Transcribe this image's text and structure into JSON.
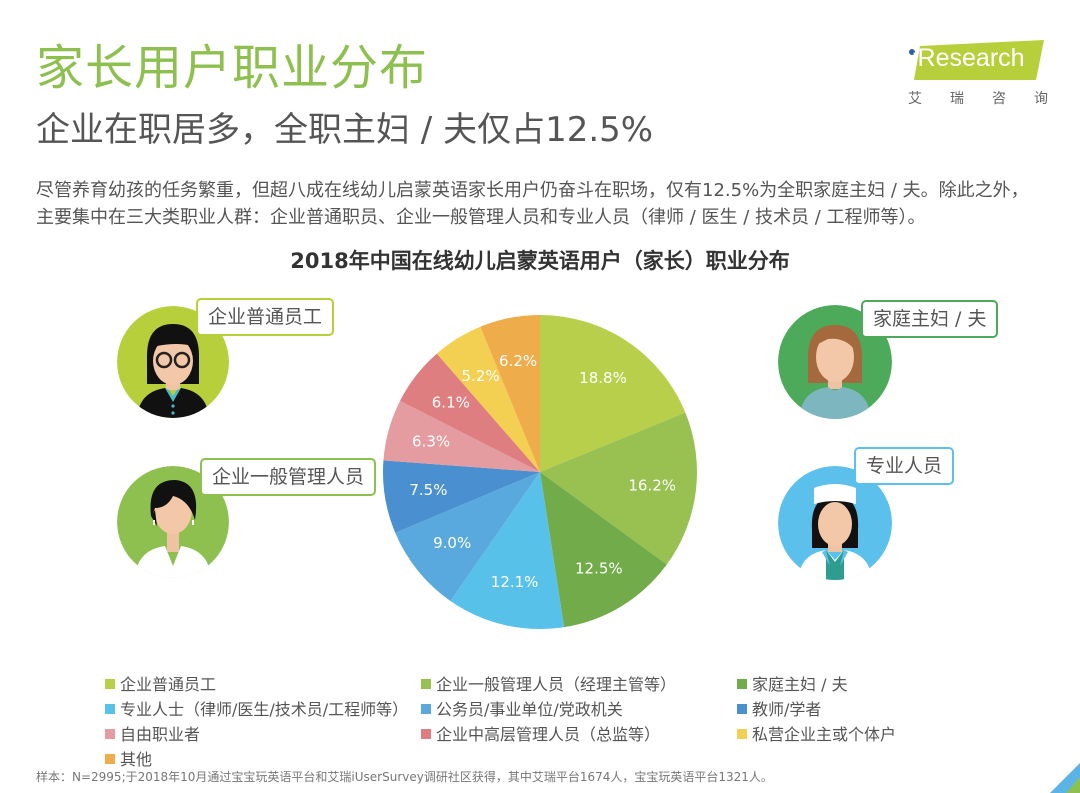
{
  "header": {
    "title": "家长用户职业分布",
    "subtitle": "企业在职居多，全职主妇 / 夫仅占12.5%",
    "logo": {
      "brand": "iResearch",
      "chinese": [
        "艾",
        "瑞",
        "咨",
        "询"
      ],
      "band_color": "#b8cf3c",
      "dot_color": "#2c5fa8"
    }
  },
  "description": "尽管养育幼孩的任务繁重，但超八成在线幼儿启蒙英语家长用户仍奋斗在职场，仅有12.5%为全职家庭主妇 / 夫。除此之外，主要集中在三大类职业人群：企业普通职员、企业一般管理人员和专业人员（律师 / 医生 / 技术员 / 工程师等）。",
  "callouts": [
    {
      "label": "企业普通员工",
      "border_color": "#b8cf3c"
    },
    {
      "label": "企业一般管理人员",
      "border_color": "#8dc04f"
    },
    {
      "label": "家庭主妇 / 夫",
      "border_color": "#4caa5a"
    },
    {
      "label": "专业人员",
      "border_color": "#5bc0eb"
    }
  ],
  "chart_data": {
    "type": "pie",
    "title": "2018年中国在线幼儿启蒙英语用户（家长）职业分布",
    "start_angle": "12 o'clock, clockwise",
    "categories": [
      "企业普通员工",
      "企业一般管理人员（经理主管等）",
      "家庭主妇 / 夫",
      "专业人士（律师/医生/技术员/工程师等）",
      "公务员/事业单位/党政机关",
      "教师/学者",
      "自由职业者",
      "企业中高层管理人员（总监等）",
      "私营企业主或个体户",
      "其他"
    ],
    "values": [
      18.8,
      16.2,
      12.5,
      12.1,
      9.0,
      7.5,
      6.3,
      6.1,
      5.2,
      6.2
    ],
    "labels": [
      "18.8%",
      "16.2%",
      "12.5%",
      "12.1%",
      "9.0%",
      "7.5%",
      "6.3%",
      "6.1%",
      "5.2%",
      "6.2%"
    ],
    "colors": [
      "#b8cf4b",
      "#98c152",
      "#72ab49",
      "#57c1ea",
      "#5aa9de",
      "#4a8fcf",
      "#e59ca0",
      "#df7e80",
      "#f3cf52",
      "#eeac4b"
    ],
    "legend_position": "bottom"
  },
  "legend": [
    {
      "label": "企业普通员工",
      "color": "#b8cf4b"
    },
    {
      "label": "企业一般管理人员（经理主管等）",
      "color": "#98c152"
    },
    {
      "label": "家庭主妇 / 夫",
      "color": "#72ab49"
    },
    {
      "label": "专业人士（律师/医生/技术员/工程师等）",
      "color": "#57c1ea"
    },
    {
      "label": "公务员/事业单位/党政机关",
      "color": "#5aa9de"
    },
    {
      "label": "教师/学者",
      "color": "#4a8fcf"
    },
    {
      "label": "自由职业者",
      "color": "#e59ca0"
    },
    {
      "label": "企业中高层管理人员（总监等）",
      "color": "#df7e80"
    },
    {
      "label": "私营企业主或个体户",
      "color": "#f3cf52"
    },
    {
      "label": "其他",
      "color": "#eeac4b"
    }
  ],
  "footnote": "样本：N=2995;于2018年10月通过宝宝玩英语平台和艾瑞iUserSurvey调研社区获得，其中艾瑞平台1674人，宝宝玩英语平台1321人。"
}
